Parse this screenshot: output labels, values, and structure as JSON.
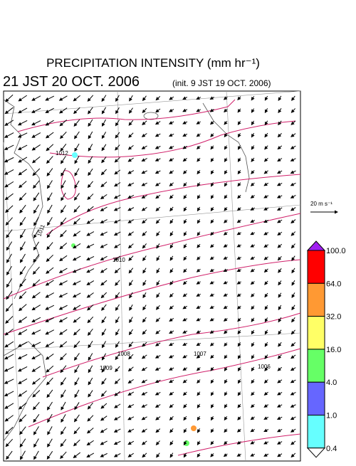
{
  "header": {
    "title": "PRECIPITATION INTENSITY (mm hr⁻¹)",
    "valid_time": "21 JST 20 OCT. 2006",
    "init_time": "(init. 9 JST 19 OCT. 2006)"
  },
  "wind_scale": {
    "label": "20 m s⁻¹"
  },
  "colorbar": {
    "labels": [
      "100.0",
      "64.0",
      "32.0",
      "16.0",
      "4.0",
      "1.0",
      "0.4"
    ],
    "colors": [
      "#a020f0",
      "#ff0000",
      "#ff9933",
      "#ffff66",
      "#66ff66",
      "#6666ff",
      "#66ffff",
      "#ffffff"
    ]
  },
  "isobar_labels": [
    "1012",
    "1011",
    "1010",
    "1009",
    "1008",
    "1007",
    "1006"
  ]
}
